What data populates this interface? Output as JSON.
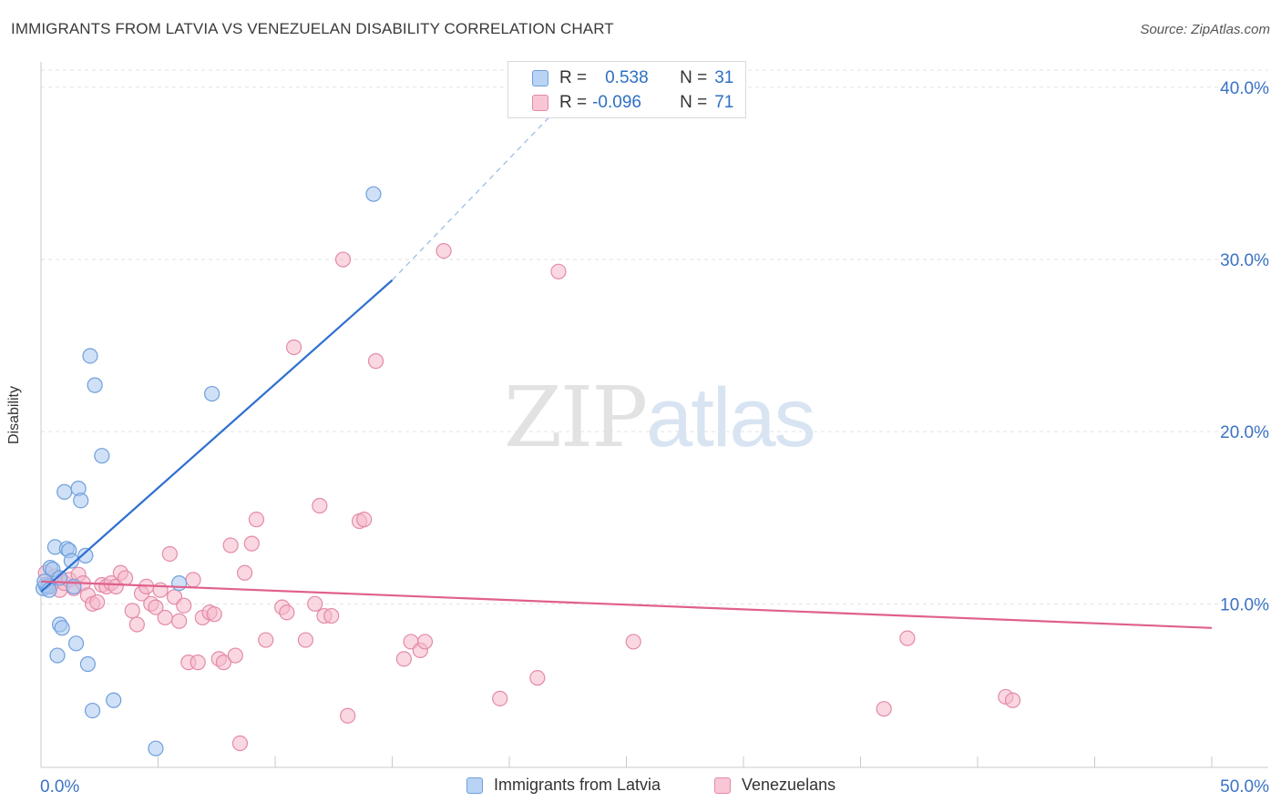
{
  "title": "IMMIGRANTS FROM LATVIA VS VENEZUELAN DISABILITY CORRELATION CHART",
  "source": "Source: ZipAtlas.com",
  "watermark": {
    "zip": "ZIP",
    "atlas": "atlas"
  },
  "stats_legend": {
    "rows": [
      {
        "r_label": "R =",
        "r_value": "0.538",
        "n_label": "N =",
        "n_value": "31"
      },
      {
        "r_label": "R =",
        "r_value": "-0.096",
        "n_label": "N =",
        "n_value": "71"
      }
    ]
  },
  "chart_data": {
    "type": "scatter",
    "title": "IMMIGRANTS FROM LATVIA VS VENEZUELAN DISABILITY CORRELATION CHART",
    "xlabel": "",
    "ylabel": "Disability",
    "xlim": [
      0,
      50
    ],
    "ylim": [
      0.5,
      41
    ],
    "x_tick_labels": [
      "0.0%",
      "50.0%"
    ],
    "y_ticks": [
      10,
      20,
      30,
      40
    ],
    "y_tick_labels": [
      "10.0%",
      "20.0%",
      "30.0%",
      "40.0%"
    ],
    "grid": true,
    "legend_position": "bottom",
    "colors": {
      "latvia_fill": "#a9c8f0",
      "latvia_stroke": "#6f9fdc",
      "latvia_line": "#2e6fd0",
      "venezuela_fill": "#f6b8cb",
      "venezuela_stroke": "#e48aa7",
      "venezuela_line": "#e0608c",
      "axis": "#c9c9c9",
      "grid": "#e3e3e3",
      "tick_text": "#3b73c4"
    },
    "series": [
      {
        "name": "Immigrants from Latvia",
        "r": 0.538,
        "n": 31,
        "trend": {
          "x0": 0.0,
          "y0": 10.7,
          "x1": 15.0,
          "y1": 28.8,
          "dash_to_x": 23.5,
          "dash_to_y": 40.8
        },
        "points": [
          [
            0.1,
            10.9
          ],
          [
            0.2,
            11.1
          ],
          [
            0.3,
            11.0
          ],
          [
            0.4,
            12.1
          ],
          [
            0.5,
            12.0
          ],
          [
            0.6,
            13.3
          ],
          [
            0.7,
            7.0
          ],
          [
            0.8,
            8.8
          ],
          [
            0.9,
            8.6
          ],
          [
            1.0,
            16.5
          ],
          [
            1.1,
            13.2
          ],
          [
            1.2,
            13.1
          ],
          [
            1.3,
            12.5
          ],
          [
            1.4,
            11.0
          ],
          [
            1.5,
            7.7
          ],
          [
            1.6,
            16.7
          ],
          [
            1.7,
            16.0
          ],
          [
            1.9,
            12.8
          ],
          [
            2.0,
            6.5
          ],
          [
            2.1,
            24.4
          ],
          [
            2.2,
            3.8
          ],
          [
            2.3,
            22.7
          ],
          [
            2.6,
            18.6
          ],
          [
            3.1,
            4.4
          ],
          [
            4.9,
            1.6
          ],
          [
            5.9,
            11.2
          ],
          [
            7.3,
            22.2
          ],
          [
            14.2,
            33.8
          ],
          [
            0.15,
            11.3
          ],
          [
            0.35,
            10.8
          ],
          [
            0.8,
            11.5
          ]
        ]
      },
      {
        "name": "Venezuelans",
        "r": -0.096,
        "n": 71,
        "trend": {
          "x0": 0.0,
          "y0": 11.3,
          "x1": 50.0,
          "y1": 8.6
        },
        "points": [
          [
            0.2,
            11.8
          ],
          [
            0.4,
            11.0
          ],
          [
            0.6,
            11.6
          ],
          [
            0.8,
            10.8
          ],
          [
            1.0,
            11.2
          ],
          [
            1.2,
            11.4
          ],
          [
            1.4,
            10.9
          ],
          [
            1.6,
            11.7
          ],
          [
            1.8,
            11.2
          ],
          [
            2.0,
            10.5
          ],
          [
            2.2,
            10.0
          ],
          [
            2.4,
            10.1
          ],
          [
            2.6,
            11.1
          ],
          [
            2.8,
            11.0
          ],
          [
            3.0,
            11.2
          ],
          [
            3.2,
            11.0
          ],
          [
            3.4,
            11.8
          ],
          [
            3.6,
            11.5
          ],
          [
            3.9,
            9.6
          ],
          [
            4.1,
            8.8
          ],
          [
            4.3,
            10.6
          ],
          [
            4.5,
            11.0
          ],
          [
            4.7,
            10.0
          ],
          [
            4.9,
            9.8
          ],
          [
            5.1,
            10.8
          ],
          [
            5.3,
            9.2
          ],
          [
            5.5,
            12.9
          ],
          [
            5.7,
            10.4
          ],
          [
            5.9,
            9.0
          ],
          [
            6.1,
            9.9
          ],
          [
            6.3,
            6.6
          ],
          [
            6.5,
            11.4
          ],
          [
            6.7,
            6.6
          ],
          [
            6.9,
            9.2
          ],
          [
            7.2,
            9.5
          ],
          [
            7.4,
            9.4
          ],
          [
            7.6,
            6.8
          ],
          [
            7.8,
            6.6
          ],
          [
            8.1,
            13.4
          ],
          [
            8.3,
            7.0
          ],
          [
            8.5,
            1.9
          ],
          [
            8.7,
            11.8
          ],
          [
            9.0,
            13.5
          ],
          [
            9.2,
            14.9
          ],
          [
            9.6,
            7.9
          ],
          [
            10.3,
            9.8
          ],
          [
            10.5,
            9.5
          ],
          [
            10.8,
            24.9
          ],
          [
            11.3,
            7.9
          ],
          [
            11.7,
            10.0
          ],
          [
            11.9,
            15.7
          ],
          [
            12.1,
            9.3
          ],
          [
            12.4,
            9.3
          ],
          [
            12.9,
            30.0
          ],
          [
            13.1,
            3.5
          ],
          [
            13.6,
            14.8
          ],
          [
            13.8,
            14.9
          ],
          [
            14.3,
            24.1
          ],
          [
            15.5,
            6.8
          ],
          [
            15.8,
            7.8
          ],
          [
            16.2,
            7.3
          ],
          [
            16.4,
            7.8
          ],
          [
            17.2,
            30.5
          ],
          [
            19.6,
            4.5
          ],
          [
            21.2,
            5.7
          ],
          [
            22.1,
            29.3
          ],
          [
            25.3,
            7.8
          ],
          [
            36.0,
            3.9
          ],
          [
            37.0,
            8.0
          ],
          [
            41.2,
            4.6
          ],
          [
            41.5,
            4.4
          ]
        ]
      }
    ]
  },
  "legend_bottom": {
    "items": [
      "Immigrants from Latvia",
      "Venezuelans"
    ]
  }
}
